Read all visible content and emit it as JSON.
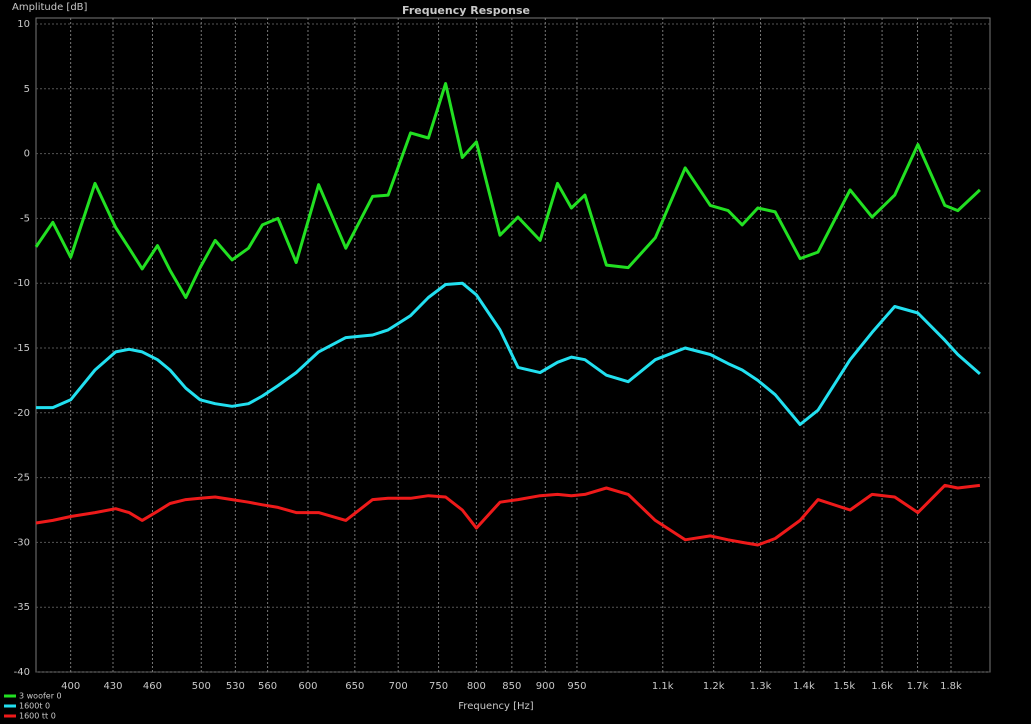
{
  "chart_data": {
    "type": "line",
    "title": "Frequency Response",
    "x_label": "Frequency [Hz]",
    "y_label": "Amplitude [dB]",
    "x": [
      377,
      388,
      400,
      417,
      432,
      442,
      452,
      464,
      474,
      487,
      499,
      512,
      527,
      542,
      555,
      570,
      588,
      611,
      640,
      670,
      688,
      715,
      737,
      759,
      781,
      800,
      833,
      859,
      892,
      919,
      941,
      963,
      999,
      1037,
      1086,
      1143,
      1193,
      1230,
      1260,
      1294,
      1333,
      1391,
      1434,
      1515,
      1573,
      1635,
      1701,
      1781,
      1821,
      1891
    ],
    "series": [
      {
        "name": "3 woofer 0",
        "color": "#22e022",
        "values": [
          -7.2,
          -5.3,
          -8.0,
          -2.3,
          -5.7,
          -7.3,
          -8.9,
          -7.1,
          -9.0,
          -11.1,
          -8.8,
          -6.7,
          -8.2,
          -7.3,
          -5.5,
          -5.0,
          -8.4,
          -2.4,
          -7.3,
          -3.3,
          -3.2,
          1.6,
          1.2,
          5.4,
          -0.3,
          0.9,
          -6.3,
          -4.9,
          -6.7,
          -2.3,
          -4.2,
          -3.2,
          -8.6,
          -8.8,
          -6.5,
          -1.1,
          -4.0,
          -4.4,
          -5.5,
          -4.2,
          -4.5,
          -8.1,
          -7.6,
          -2.8,
          -4.9,
          -3.2,
          0.7,
          -4.0,
          -4.4,
          -2.8
        ]
      },
      {
        "name": "1600t 0",
        "color": "#22e0f0",
        "values": [
          -19.6,
          -19.6,
          -19.0,
          -16.7,
          -15.3,
          -15.1,
          -15.3,
          -15.9,
          -16.7,
          -18.1,
          -19.0,
          -19.3,
          -19.5,
          -19.3,
          -18.7,
          -17.9,
          -16.9,
          -15.3,
          -14.2,
          -14.0,
          -13.6,
          -12.5,
          -11.1,
          -10.1,
          -10.0,
          -10.9,
          -13.6,
          -16.5,
          -16.9,
          -16.1,
          -15.7,
          -15.9,
          -17.1,
          -17.6,
          -15.9,
          -15.0,
          -15.5,
          -16.2,
          -16.7,
          -17.5,
          -18.6,
          -20.9,
          -19.8,
          -15.9,
          -13.8,
          -11.8,
          -12.3,
          -14.4,
          -15.5,
          -17.0
        ]
      },
      {
        "name": "1600 tt 0",
        "color": "#ee1a1a",
        "values": [
          -28.5,
          -28.3,
          -28.0,
          -27.7,
          -27.4,
          -27.7,
          -28.3,
          -27.6,
          -27.0,
          -26.7,
          -26.6,
          -26.5,
          -26.7,
          -26.9,
          -27.1,
          -27.3,
          -27.7,
          -27.7,
          -28.3,
          -26.7,
          -26.6,
          -26.6,
          -26.4,
          -26.5,
          -27.5,
          -28.9,
          -26.9,
          -26.7,
          -26.4,
          -26.3,
          -26.4,
          -26.3,
          -25.8,
          -26.3,
          -28.3,
          -29.8,
          -29.5,
          -29.8,
          -30.0,
          -30.2,
          -29.7,
          -28.3,
          -26.7,
          -27.5,
          -26.3,
          -26.5,
          -27.7,
          -25.6,
          -25.8,
          -25.6
        ]
      }
    ],
    "xlim": [
      377,
      1924
    ],
    "ylim": [
      -40,
      10
    ],
    "log_x": true,
    "grid": true,
    "legend": "bottom-left",
    "xticks": [
      400,
      430,
      460,
      500,
      530,
      560,
      600,
      650,
      700,
      750,
      800,
      850,
      900,
      950,
      {
        "value": 1100,
        "label": "1.1k"
      },
      {
        "value": 1200,
        "label": "1.2k"
      },
      {
        "value": 1300,
        "label": "1.3k"
      },
      {
        "value": 1400,
        "label": "1.4k"
      },
      {
        "value": 1500,
        "label": "1.5k"
      },
      {
        "value": 1600,
        "label": "1.6k"
      },
      {
        "value": 1700,
        "label": "1.7k"
      },
      {
        "value": 1800,
        "label": "1.8k"
      }
    ],
    "yticks": [
      10,
      5,
      0,
      -5,
      -10,
      -15,
      -20,
      -25,
      -30,
      -35,
      -40
    ]
  }
}
